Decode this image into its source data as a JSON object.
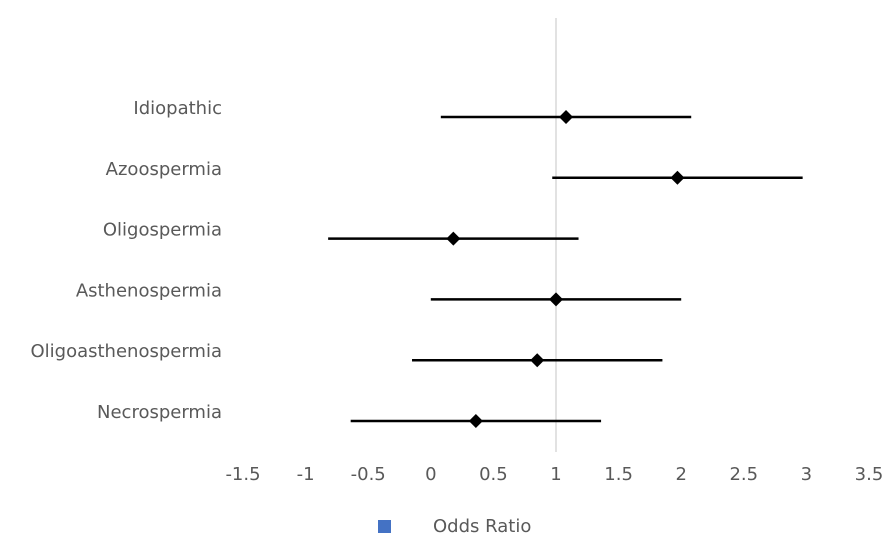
{
  "chart_data": {
    "type": "scatter",
    "subtype": "forest-plot",
    "title": "",
    "xlabel": "",
    "ylabel": "",
    "xlim": [
      -1.5,
      3.5
    ],
    "xticks": [
      "-1.5",
      "-1",
      "-0.5",
      "0",
      "0.5",
      "1",
      "1.5",
      "2",
      "2.5",
      "3",
      "3.5"
    ],
    "reference_line": 1,
    "grid": false,
    "categories": [
      "Idiopathic",
      "Azoospermia",
      "Oligospermia",
      "Asthenospermia",
      "Oligoasthenospermia",
      "Necrospermia"
    ],
    "series": [
      {
        "name": "Odds Ratio",
        "values": [
          1.08,
          1.97,
          0.18,
          1.0,
          0.85,
          0.36
        ],
        "lower": [
          0.08,
          0.97,
          -0.82,
          0.0,
          -0.15,
          -0.64
        ],
        "upper": [
          2.08,
          2.97,
          1.18,
          2.0,
          1.85,
          1.36
        ]
      }
    ],
    "legend": {
      "position": "bottom",
      "color": "#4472C4"
    },
    "colors": {
      "marker": "#000000",
      "ci_line": "#000000",
      "reference_line": "#D9D9D9",
      "label": "#595959"
    }
  }
}
